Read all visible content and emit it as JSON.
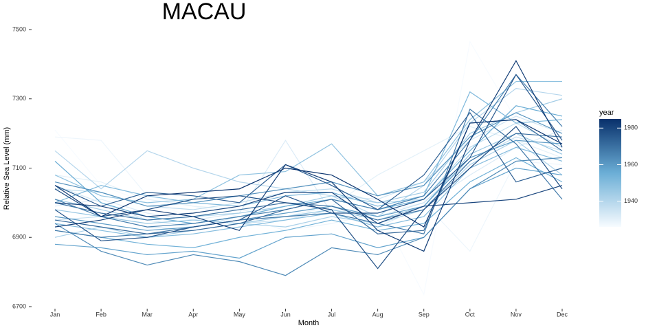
{
  "chart_data": {
    "type": "line",
    "title": "MACAU",
    "x_label": "Month",
    "y_label": "Relative Sea Level (mm)",
    "categories": [
      "Jan",
      "Feb",
      "Mar",
      "Apr",
      "May",
      "Jun",
      "Jul",
      "Aug",
      "Sep",
      "Oct",
      "Nov",
      "Dec"
    ],
    "ylim": [
      6700,
      7500
    ],
    "yticks": [
      6700,
      6900,
      7100,
      7300,
      7500
    ],
    "grid": false,
    "colorbar": {
      "title": "year",
      "limits": [
        1926,
        1985
      ],
      "ticks": [
        1940,
        1960,
        1980
      ],
      "colors": [
        "#f7fbff",
        "#6baed6",
        "#08306b"
      ]
    },
    "series": [
      {
        "year": 1926,
        "values": [
          7210,
          7050,
          7000,
          6960,
          6940,
          6930,
          6950,
          6990,
          6735,
          7465,
          7240,
          7180
        ]
      },
      {
        "year": 1928,
        "values": [
          7190,
          7180,
          7020,
          6990,
          6960,
          6920,
          6940,
          6970,
          7000,
          6860,
          7120,
          7110
        ]
      },
      {
        "year": 1930,
        "values": [
          7080,
          7060,
          7010,
          6990,
          6980,
          6960,
          6990,
          7080,
          7150,
          7220,
          7180,
          7130
        ]
      },
      {
        "year": 1932,
        "values": [
          6990,
          7010,
          6970,
          6950,
          6970,
          7180,
          6970,
          6930,
          6990,
          7080,
          7160,
          7210
        ]
      },
      {
        "year": 1934,
        "values": [
          7050,
          7000,
          6950,
          6930,
          6960,
          6990,
          7020,
          7010,
          7060,
          7180,
          7250,
          7200
        ]
      },
      {
        "year": 1936,
        "values": [
          6950,
          6960,
          6930,
          6920,
          6940,
          6950,
          6980,
          6960,
          7000,
          7120,
          7190,
          7150
        ]
      },
      {
        "year": 1938,
        "values": [
          7040,
          7030,
          6990,
          6980,
          7000,
          7030,
          7040,
          7000,
          7010,
          7160,
          7230,
          7160
        ]
      },
      {
        "year": 1940,
        "values": [
          7150,
          7040,
          7150,
          7100,
          7060,
          7040,
          7020,
          6960,
          7050,
          7230,
          7330,
          7310
        ]
      },
      {
        "year": 1942,
        "values": [
          6900,
          6930,
          6900,
          6920,
          6940,
          6930,
          6960,
          6940,
          6980,
          7110,
          7180,
          7080
        ]
      },
      {
        "year": 1944,
        "values": [
          7010,
          6980,
          6950,
          6960,
          6970,
          6990,
          7020,
          7000,
          7030,
          7200,
          7260,
          7300
        ]
      },
      {
        "year": 1946,
        "values": [
          6980,
          6960,
          6940,
          6950,
          6940,
          6960,
          6980,
          6950,
          6990,
          7140,
          7200,
          7140
        ]
      },
      {
        "year": 1948,
        "values": [
          7080,
          7020,
          7000,
          7010,
          7080,
          7090,
          7170,
          7020,
          7060,
          7240,
          7350,
          7350
        ]
      },
      {
        "year": 1950,
        "values": [
          6940,
          6920,
          6900,
          6910,
          6930,
          6950,
          6970,
          6930,
          6960,
          7100,
          7160,
          7120
        ]
      },
      {
        "year": 1952,
        "values": [
          7000,
          7050,
          7020,
          7000,
          6990,
          7020,
          7030,
          6990,
          7020,
          7320,
          7230,
          7240
        ]
      },
      {
        "year": 1954,
        "values": [
          6920,
          6900,
          6880,
          6870,
          6900,
          6920,
          6950,
          6920,
          6940,
          7060,
          7130,
          7060
        ]
      },
      {
        "year": 1956,
        "values": [
          7120,
          7000,
          6960,
          6940,
          6960,
          6990,
          7010,
          6980,
          7010,
          7150,
          7280,
          7250
        ]
      },
      {
        "year": 1958,
        "values": [
          6880,
          6870,
          6850,
          6860,
          6840,
          6900,
          6910,
          6870,
          6900,
          7040,
          7100,
          7080
        ]
      },
      {
        "year": 1960,
        "values": [
          6960,
          6940,
          6920,
          6930,
          6950,
          6970,
          6990,
          6960,
          6990,
          7130,
          7180,
          7170
        ]
      },
      {
        "year": 1962,
        "values": [
          7060,
          7030,
          6990,
          7000,
          7020,
          7040,
          7060,
          7020,
          7050,
          7190,
          7260,
          7200
        ]
      },
      {
        "year": 1964,
        "values": [
          6940,
          6860,
          6820,
          6850,
          6830,
          6790,
          6870,
          6850,
          6900,
          7040,
          7120,
          7130
        ]
      },
      {
        "year": 1966,
        "values": [
          7010,
          6960,
          6930,
          6940,
          6960,
          6980,
          7010,
          6980,
          7020,
          7180,
          7370,
          7220
        ]
      },
      {
        "year": 1968,
        "values": [
          6920,
          6900,
          6910,
          6930,
          6950,
          6960,
          6970,
          6940,
          6910,
          7270,
          7170,
          7010
        ]
      },
      {
        "year": 1970,
        "values": [
          7000,
          6970,
          6950,
          6960,
          6980,
          7000,
          6990,
          6950,
          6980,
          7120,
          7200,
          7190
        ]
      },
      {
        "year": 1972,
        "values": [
          6950,
          6930,
          6910,
          6920,
          6940,
          6980,
          7010,
          6910,
          6920,
          7230,
          7240,
          7150
        ]
      },
      {
        "year": 1974,
        "values": [
          7050,
          6990,
          7030,
          7020,
          7000,
          7110,
          7050,
          6980,
          7080,
          7260,
          7060,
          7100
        ]
      },
      {
        "year": 1976,
        "values": [
          6980,
          6890,
          6900,
          6930,
          6950,
          7020,
          6970,
          6970,
          7010,
          7130,
          7370,
          7180
        ]
      },
      {
        "year": 1978,
        "values": [
          7040,
          6960,
          6980,
          7010,
          7020,
          7000,
          6980,
          6810,
          6980,
          7100,
          7220,
          7040
        ]
      },
      {
        "year": 1980,
        "values": [
          7000,
          6990,
          6960,
          6970,
          6990,
          7030,
          7030,
          6940,
          6990,
          7000,
          7010,
          7050
        ]
      },
      {
        "year": 1982,
        "values": [
          6930,
          6950,
          6980,
          6960,
          6920,
          7110,
          7060,
          6920,
          6860,
          7180,
          7410,
          7160
        ]
      },
      {
        "year": 1984,
        "values": [
          7050,
          6960,
          7020,
          7030,
          7040,
          7100,
          7080,
          7010,
          6930,
          7230,
          7240,
          7170
        ]
      }
    ]
  }
}
